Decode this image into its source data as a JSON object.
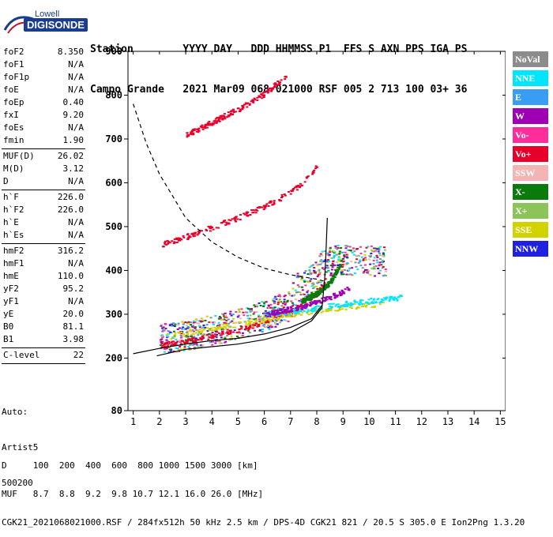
{
  "logo": {
    "line1": "Lowell",
    "line2": "DIGISONDE"
  },
  "header": {
    "line1": "Station        YYYY DAY   DDD HHMMSS P1  FFS S AXN PPS IGA PS",
    "line2": "Campo Grande   2021 Mar09 068 021000 RSF 005 2 713 100 03+ 36"
  },
  "params": [
    {
      "k": "foF2",
      "v": "8.350"
    },
    {
      "k": "foF1",
      "v": "N/A"
    },
    {
      "k": "foF1p",
      "v": "N/A"
    },
    {
      "k": "foE",
      "v": "N/A"
    },
    {
      "k": "foEp",
      "v": "0.40"
    },
    {
      "k": "fxI",
      "v": "9.20"
    },
    {
      "k": "foEs",
      "v": "N/A"
    },
    {
      "k": "fmin",
      "v": "1.90"
    },
    {
      "k": "MUF(D)",
      "v": "26.02"
    },
    {
      "k": "M(D)",
      "v": "3.12"
    },
    {
      "k": "D",
      "v": "N/A"
    },
    {
      "k": "h`F",
      "v": "226.0"
    },
    {
      "k": "h`F2",
      "v": "226.0"
    },
    {
      "k": "h`E",
      "v": "N/A"
    },
    {
      "k": "h`Es",
      "v": "N/A"
    },
    {
      "k": "hmF2",
      "v": "316.2"
    },
    {
      "k": "hmF1",
      "v": "N/A"
    },
    {
      "k": "hmE",
      "v": "110.0"
    },
    {
      "k": "yF2",
      "v": "95.2"
    },
    {
      "k": "yF1",
      "v": "N/A"
    },
    {
      "k": "yE",
      "v": "20.0"
    },
    {
      "k": "B0",
      "v": "81.1"
    },
    {
      "k": "B1",
      "v": "3.98"
    },
    {
      "k": "C-level",
      "v": "22"
    }
  ],
  "auto": {
    "line1": "Auto:",
    "line2": "Artist5",
    "line3": "500200"
  },
  "legend": [
    {
      "label": "NoVal",
      "color": "#8c8c8c"
    },
    {
      "label": "NNE",
      "color": "#00e5ff"
    },
    {
      "label": "E",
      "color": "#3a9df4"
    },
    {
      "label": "W",
      "color": "#a000b4"
    },
    {
      "label": "Vo-",
      "color": "#ff2d9a"
    },
    {
      "label": "Vo+",
      "color": "#e8002a"
    },
    {
      "label": "SSW",
      "color": "#f4b4b4"
    },
    {
      "label": "X-",
      "color": "#0a7a0a"
    },
    {
      "label": "X+",
      "color": "#8cc45a"
    },
    {
      "label": "SSE",
      "color": "#d2d200"
    },
    {
      "label": "NNW",
      "color": "#2020e0"
    }
  ],
  "footer": {
    "line1": "D     100  200  400  600  800 1000 1500 3000 [km]",
    "line2": "MUF   8.7  8.8  9.2  9.8 10.7 12.1 16.0 26.0 [MHz]",
    "line3": "CGK21_2021068021000.RSF / 284fx512h 50 kHz 2.5 km / DPS-4D CGK21 821 / 20.5 S 305.0 E Ion2Png 1.3.20"
  },
  "chart_data": {
    "type": "scatter",
    "xlabel": "",
    "ylabel": "",
    "xlim": [
      0.8,
      15.2
    ],
    "ylim": [
      80,
      900
    ],
    "xticks": [
      1,
      2,
      3,
      4,
      5,
      6,
      7,
      8,
      9,
      10,
      11,
      12,
      13,
      14,
      15
    ],
    "yticks": [
      80,
      200,
      300,
      400,
      500,
      600,
      700,
      800,
      900
    ],
    "traces": [
      {
        "name": "O-trace",
        "color": "#e8002a",
        "points": [
          [
            2.0,
            230
          ],
          [
            3,
            240
          ],
          [
            4,
            252
          ],
          [
            5,
            266
          ],
          [
            6,
            284
          ],
          [
            7,
            308
          ],
          [
            7.6,
            328
          ],
          [
            8.0,
            350
          ],
          [
            8.3,
            380
          ]
        ]
      },
      {
        "name": "second hop",
        "color": "#e8002a",
        "points": [
          [
            2.0,
            460
          ],
          [
            3,
            478
          ],
          [
            4,
            500
          ],
          [
            5,
            522
          ],
          [
            6,
            548
          ],
          [
            7,
            580
          ],
          [
            7.6,
            610
          ],
          [
            8.0,
            640
          ]
        ]
      },
      {
        "name": "third hop",
        "color": "#e8002a",
        "points": [
          [
            3.0,
            710
          ],
          [
            4,
            740
          ],
          [
            5,
            770
          ],
          [
            6,
            805
          ],
          [
            6.8,
            845
          ]
        ]
      },
      {
        "name": "X-trace",
        "color": "#0a7a0a",
        "points": [
          [
            7.4,
            330
          ],
          [
            8,
            350
          ],
          [
            8.5,
            375
          ],
          [
            8.9,
            420
          ]
        ]
      },
      {
        "name": "SSE",
        "color": "#d2d200",
        "points": [
          [
            2.5,
            255
          ],
          [
            4,
            268
          ],
          [
            6,
            290
          ],
          [
            8,
            310
          ],
          [
            9.5,
            320
          ],
          [
            10.5,
            325
          ]
        ]
      },
      {
        "name": "NNE",
        "color": "#00e5ff",
        "points": [
          [
            6,
            300
          ],
          [
            8,
            315
          ],
          [
            9,
            325
          ],
          [
            10.5,
            335
          ],
          [
            11.2,
            340
          ]
        ]
      },
      {
        "name": "W",
        "color": "#a000b4",
        "points": [
          [
            6,
            300
          ],
          [
            7.5,
            320
          ],
          [
            8.5,
            340
          ],
          [
            9.2,
            360
          ]
        ]
      },
      {
        "name": "SSW",
        "color": "#f4b4b4",
        "points": [
          [
            3,
            385
          ],
          [
            4,
            395
          ],
          [
            5,
            400
          ],
          [
            6,
            395
          ],
          [
            2,
            380
          ]
        ]
      }
    ],
    "profile": [
      [
        1.9,
        205
      ],
      [
        3,
        220
      ],
      [
        4,
        226
      ],
      [
        5,
        232
      ],
      [
        6,
        242
      ],
      [
        7,
        258
      ],
      [
        7.8,
        285
      ],
      [
        8.2,
        315
      ],
      [
        8.3,
        380
      ],
      [
        8.35,
        440
      ],
      [
        8.4,
        520
      ]
    ],
    "muf_curve": [
      [
        1.0,
        780
      ],
      [
        1.5,
        690
      ],
      [
        2,
        620
      ],
      [
        2.6,
        560
      ],
      [
        3,
        520
      ],
      [
        4,
        465
      ],
      [
        5,
        430
      ],
      [
        6,
        405
      ],
      [
        7,
        390
      ],
      [
        8,
        380
      ],
      [
        8.3,
        375
      ]
    ],
    "profile_lower": [
      [
        1.0,
        210
      ],
      [
        2,
        222
      ],
      [
        3,
        232
      ],
      [
        4,
        240
      ],
      [
        5,
        245
      ],
      [
        6,
        255
      ],
      [
        7,
        270
      ],
      [
        7.8,
        290
      ],
      [
        8.2,
        320
      ]
    ]
  }
}
